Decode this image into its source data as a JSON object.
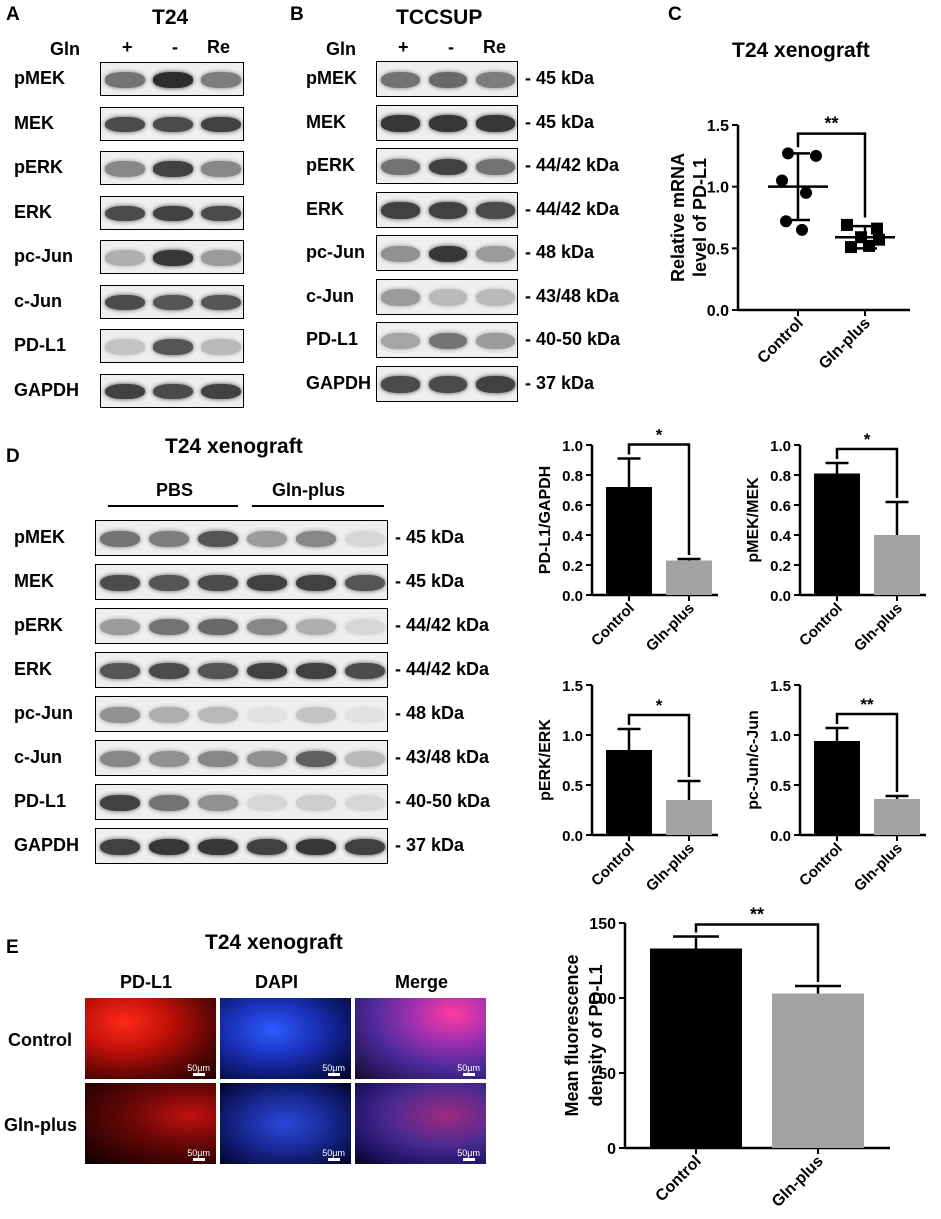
{
  "panelA": {
    "letter": "A",
    "title": "T24",
    "gln_label": "Gln",
    "conditions": [
      "+",
      "-",
      "Re"
    ],
    "rows": [
      {
        "label": "pMEK",
        "intensity": [
          0.6,
          0.95,
          0.55
        ]
      },
      {
        "label": "MEK",
        "intensity": [
          0.8,
          0.8,
          0.85
        ]
      },
      {
        "label": "pERK",
        "intensity": [
          0.5,
          0.85,
          0.5
        ]
      },
      {
        "label": "ERK",
        "intensity": [
          0.8,
          0.85,
          0.8
        ]
      },
      {
        "label": "pc-Jun",
        "intensity": [
          0.3,
          0.9,
          0.4
        ]
      },
      {
        "label": "c-Jun",
        "intensity": [
          0.8,
          0.75,
          0.75
        ]
      },
      {
        "label": "PD-L1",
        "intensity": [
          0.2,
          0.75,
          0.25
        ]
      },
      {
        "label": "GAPDH",
        "intensity": [
          0.85,
          0.8,
          0.85
        ]
      }
    ]
  },
  "panelB": {
    "letter": "B",
    "title": "TCCSUP",
    "gln_label": "Gln",
    "conditions": [
      "+",
      "-",
      "Re"
    ],
    "rows": [
      {
        "label": "pMEK",
        "kda": "- 45 kDa",
        "intensity": [
          0.6,
          0.65,
          0.55
        ]
      },
      {
        "label": "MEK",
        "kda": "- 45 kDa",
        "intensity": [
          0.9,
          0.9,
          0.9
        ]
      },
      {
        "label": "pERK",
        "kda": "- 44/42 kDa",
        "intensity": [
          0.6,
          0.85,
          0.6
        ]
      },
      {
        "label": "ERK",
        "kda": "- 44/42 kDa",
        "intensity": [
          0.85,
          0.85,
          0.8
        ]
      },
      {
        "label": "pc-Jun",
        "kda": "- 48 kDa",
        "intensity": [
          0.45,
          0.9,
          0.4
        ]
      },
      {
        "label": "c-Jun",
        "kda": "- 43/48 kDa",
        "intensity": [
          0.4,
          0.25,
          0.25
        ]
      },
      {
        "label": "PD-L1",
        "kda": "- 40-50 kDa",
        "intensity": [
          0.35,
          0.6,
          0.4
        ]
      },
      {
        "label": "GAPDH",
        "kda": "- 37 kDa",
        "intensity": [
          0.8,
          0.8,
          0.85
        ]
      }
    ]
  },
  "panelC": {
    "letter": "C",
    "title": "T24 xenograft",
    "chart_data": {
      "type": "scatter",
      "title": "T24 xenograft",
      "ylabel_line1": "Relative mRNA",
      "ylabel_line2": "level of PD-L1",
      "ylim": [
        0,
        1.5
      ],
      "yticks": [
        "0.0",
        "0.5",
        "1.0",
        "1.5"
      ],
      "categories": [
        "Control",
        "Gln-plus"
      ],
      "series": [
        {
          "values": [
            1.27,
            1.25,
            1.05,
            0.95,
            0.72,
            0.65
          ],
          "mean": 1.0,
          "sd": 0.27
        },
        {
          "values": [
            0.69,
            0.66,
            0.59,
            0.57,
            0.51,
            0.52
          ],
          "mean": 0.59,
          "sd": 0.09
        }
      ],
      "significance": "**"
    }
  },
  "panelD": {
    "letter": "D",
    "title": "T24 xenograft",
    "group1": "PBS",
    "group2": "Gln-plus",
    "rows": [
      {
        "label": "pMEK",
        "kda": "- 45 kDa",
        "intensity": [
          0.6,
          0.55,
          0.75,
          0.4,
          0.5,
          0.1
        ]
      },
      {
        "label": "MEK",
        "kda": "- 45 kDa",
        "intensity": [
          0.8,
          0.75,
          0.8,
          0.85,
          0.85,
          0.75
        ]
      },
      {
        "label": "pERK",
        "kda": "- 44/42 kDa",
        "intensity": [
          0.4,
          0.6,
          0.65,
          0.5,
          0.3,
          0.1
        ]
      },
      {
        "label": "ERK",
        "kda": "- 44/42 kDa",
        "intensity": [
          0.75,
          0.8,
          0.75,
          0.85,
          0.85,
          0.8
        ]
      },
      {
        "label": "pc-Jun",
        "kda": "- 48 kDa",
        "intensity": [
          0.45,
          0.3,
          0.25,
          0.05,
          0.2,
          0.05
        ]
      },
      {
        "label": "c-Jun",
        "kda": "- 43/48 kDa",
        "intensity": [
          0.5,
          0.45,
          0.5,
          0.45,
          0.7,
          0.25
        ]
      },
      {
        "label": "PD-L1",
        "kda": "- 40-50 kDa",
        "intensity": [
          0.85,
          0.6,
          0.45,
          0.1,
          0.15,
          0.1
        ]
      },
      {
        "label": "GAPDH",
        "kda": "- 37 kDa",
        "intensity": [
          0.85,
          0.9,
          0.9,
          0.85,
          0.9,
          0.85
        ]
      }
    ],
    "charts": [
      {
        "type": "bar",
        "ylabel": "PD-L1/GAPDH",
        "categories": [
          "Control",
          "Gln-plus"
        ],
        "values": [
          0.72,
          0.23
        ],
        "errors": [
          0.19,
          0.01
        ],
        "ylim": [
          0,
          1.0
        ],
        "yticks": [
          "0.0",
          "0.2",
          "0.4",
          "0.6",
          "0.8",
          "1.0"
        ],
        "significance": "*"
      },
      {
        "type": "bar",
        "ylabel": "pMEK/MEK",
        "categories": [
          "Control",
          "Gln-plus"
        ],
        "values": [
          0.81,
          0.4
        ],
        "errors": [
          0.07,
          0.22
        ],
        "ylim": [
          0,
          1.0
        ],
        "yticks": [
          "0.0",
          "0.2",
          "0.4",
          "0.6",
          "0.8",
          "1.0"
        ],
        "significance": "*"
      },
      {
        "type": "bar",
        "ylabel": "pERK/ERK",
        "categories": [
          "Control",
          "Gln-plus"
        ],
        "values": [
          0.85,
          0.35
        ],
        "errors": [
          0.21,
          0.19
        ],
        "ylim": [
          0,
          1.5
        ],
        "yticks": [
          "0.0",
          "0.5",
          "1.0",
          "1.5"
        ],
        "significance": "*"
      },
      {
        "type": "bar",
        "ylabel": "pc-Jun/c-Jun",
        "categories": [
          "Control",
          "Gln-plus"
        ],
        "values": [
          0.94,
          0.36
        ],
        "errors": [
          0.13,
          0.03
        ],
        "ylim": [
          0,
          1.5
        ],
        "yticks": [
          "0.0",
          "0.5",
          "1.0",
          "1.5"
        ],
        "significance": "**"
      }
    ]
  },
  "panelE": {
    "letter": "E",
    "title": "T24 xenograft",
    "columns": [
      "PD-L1",
      "DAPI",
      "Merge"
    ],
    "rows": [
      "Control",
      "Gln-plus"
    ],
    "scalebar": "50μm",
    "chart_data": {
      "type": "bar",
      "ylabel_line1": "Mean fluorescence",
      "ylabel_line2": "density of PD-L1",
      "categories": [
        "Control",
        "Gln-plus"
      ],
      "values": [
        133,
        103
      ],
      "errors": [
        8,
        5
      ],
      "ylim": [
        0,
        150
      ],
      "yticks": [
        "0",
        "50",
        "100",
        "150"
      ],
      "significance": "**"
    }
  },
  "colors": {
    "control_bar": "#000000",
    "glnplus_bar": "#a3a3a3"
  }
}
